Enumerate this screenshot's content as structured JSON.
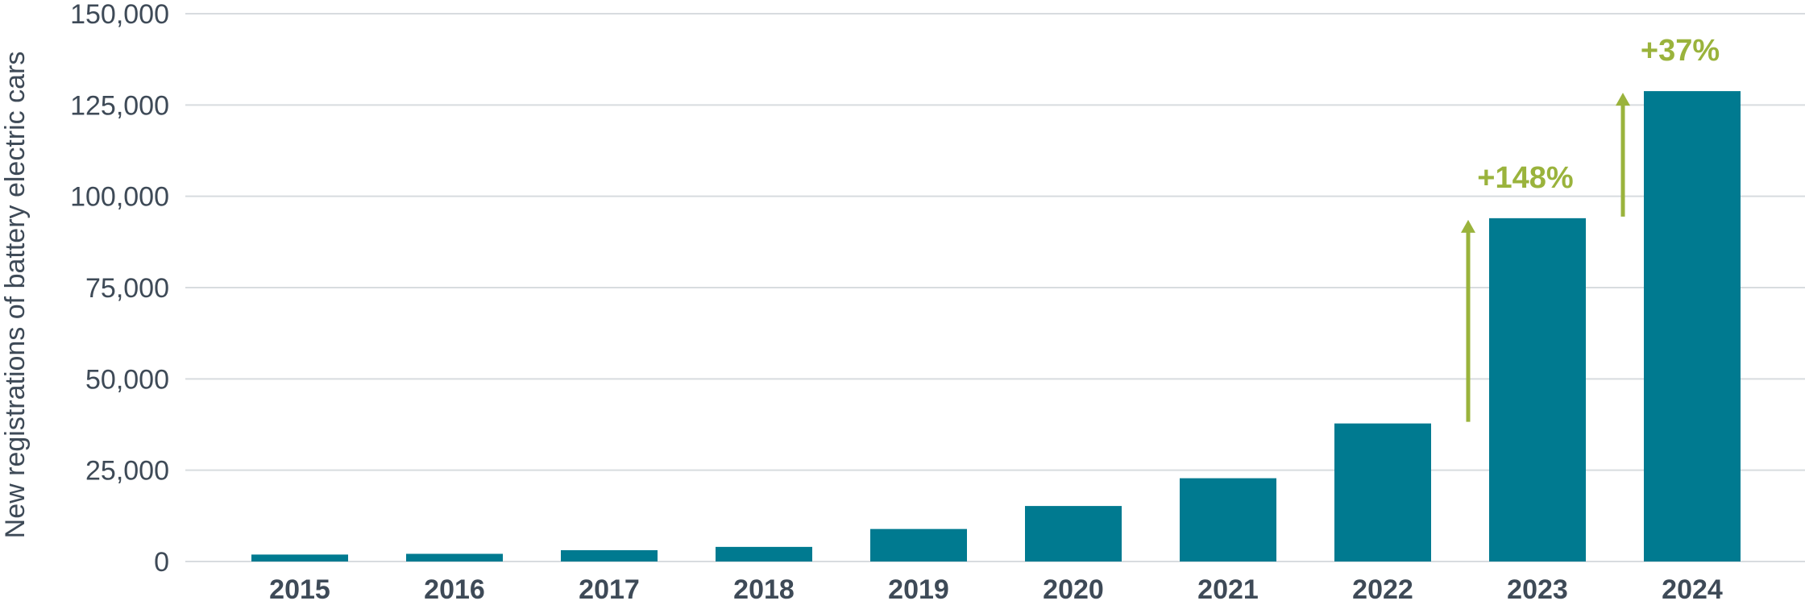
{
  "chart_data": {
    "type": "bar",
    "title": "",
    "xlabel": "",
    "ylabel": "New registrations of battery electric cars",
    "categories": [
      "2015",
      "2016",
      "2017",
      "2018",
      "2019",
      "2020",
      "2021",
      "2022",
      "2023",
      "2024"
    ],
    "values": [
      1900,
      2100,
      3100,
      4000,
      8900,
      15200,
      22800,
      37800,
      94000,
      128800
    ],
    "ylim": [
      0,
      150000
    ],
    "yticks": [
      0,
      25000,
      50000,
      75000,
      100000,
      125000,
      150000
    ],
    "ytick_labels": [
      "0",
      "25,000",
      "50,000",
      "75,000",
      "100,000",
      "125,000",
      "150,000"
    ],
    "grid": true,
    "legend": "none",
    "annotations": [
      {
        "label": "+148%",
        "from": "2022",
        "to": "2023"
      },
      {
        "label": "+37%",
        "from": "2023",
        "to": "2024"
      }
    ]
  },
  "colors": {
    "bar": "#007a90",
    "annotation": "#9ab33c",
    "grid": "#d8dcdf",
    "text": "#3e4a57"
  }
}
